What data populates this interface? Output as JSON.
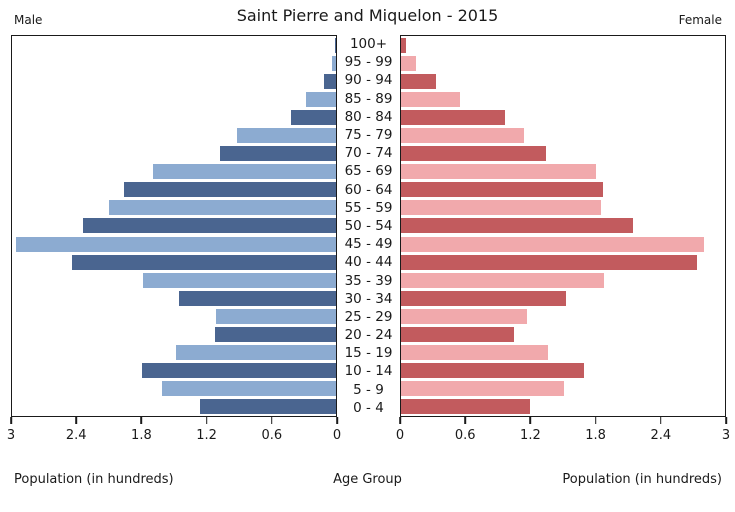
{
  "header": {
    "male_label": "Male",
    "female_label": "Female"
  },
  "chart_data": {
    "type": "bar",
    "variant": "population-pyramid",
    "title": "Saint Pierre and Miquelon - 2015",
    "categories": [
      "100+",
      "95 - 99",
      "90 - 94",
      "85 - 89",
      "80 - 84",
      "75 - 79",
      "70 - 74",
      "65 - 69",
      "60 - 64",
      "55 - 59",
      "50 - 54",
      "45 - 49",
      "40 - 44",
      "35 - 39",
      "30 - 34",
      "25 - 29",
      "20 - 24",
      "15 - 19",
      "10 - 14",
      "5 - 9",
      "0 - 4"
    ],
    "series": [
      {
        "name": "Male",
        "side": "left",
        "values": [
          0.01,
          0.04,
          0.11,
          0.28,
          0.42,
          0.92,
          1.07,
          1.69,
          1.96,
          2.1,
          2.34,
          2.96,
          2.44,
          1.79,
          1.45,
          1.11,
          1.12,
          1.48,
          1.8,
          1.61,
          1.26
        ]
      },
      {
        "name": "Female",
        "side": "right",
        "values": [
          0.05,
          0.14,
          0.32,
          0.55,
          0.96,
          1.14,
          1.34,
          1.81,
          1.87,
          1.85,
          2.15,
          2.81,
          2.74,
          1.88,
          1.53,
          1.17,
          1.05,
          1.36,
          1.69,
          1.51,
          1.19
        ]
      }
    ],
    "x_axis": {
      "max": 3,
      "unit": "hundreds",
      "left_ticks": [
        "3",
        "2.4",
        "1.8",
        "1.2",
        "0.6",
        "0"
      ],
      "right_ticks": [
        "0",
        "0.6",
        "1.2",
        "1.8",
        "2.4",
        "3"
      ],
      "label": "Population (in hundreds)",
      "center_label": "Age Group"
    },
    "colors": {
      "male_dark": "#4a6590",
      "male_light": "#8cabd1",
      "female_dark": "#c25b5e",
      "female_light": "#f1a9ac",
      "frame": "#1a1a1a"
    },
    "grid": false,
    "legend": "none"
  }
}
